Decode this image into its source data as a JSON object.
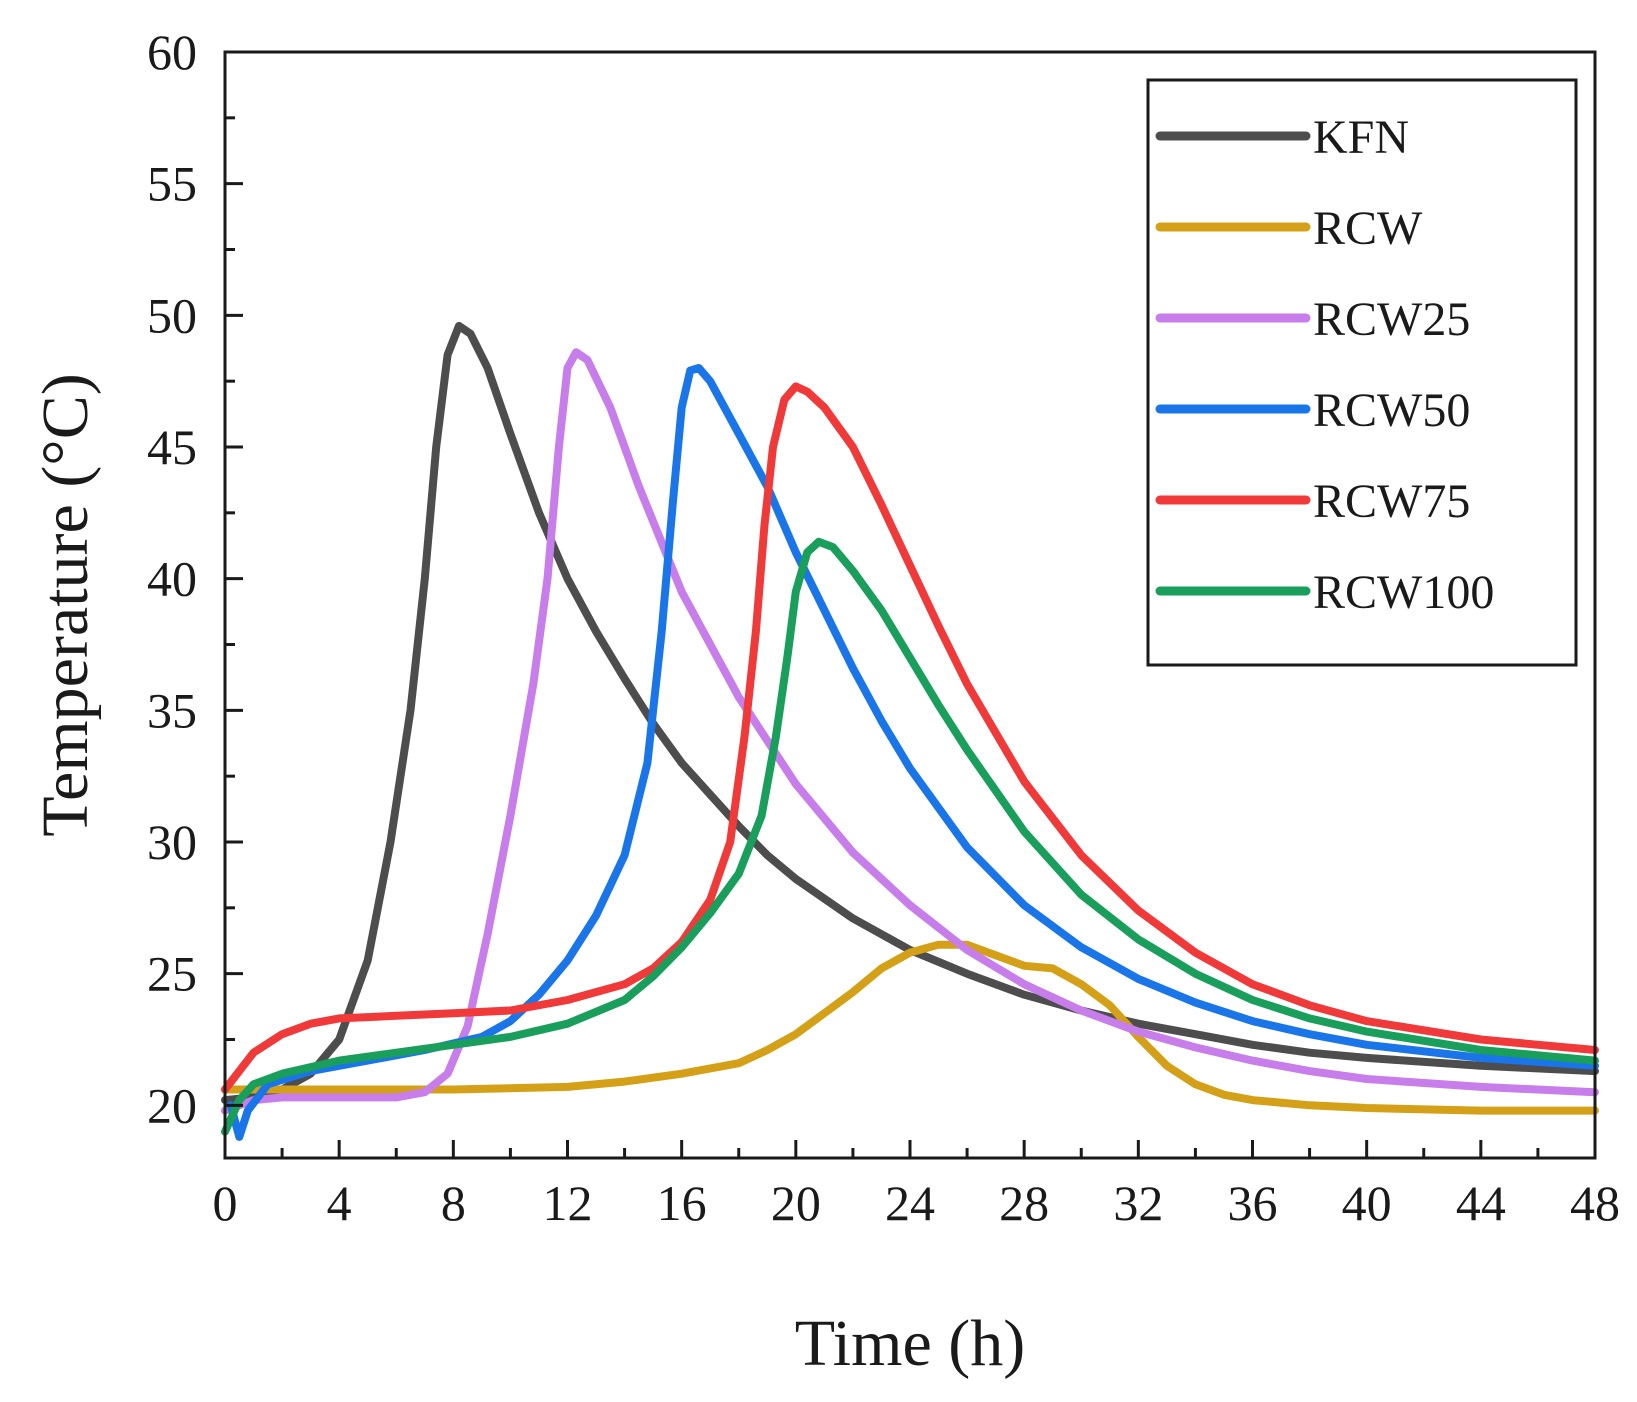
{
  "chart_data": {
    "type": "line",
    "xlabel": "Time (h)",
    "ylabel": "Temperature (°C)",
    "xlim": [
      0,
      48
    ],
    "ylim": [
      18,
      60
    ],
    "xticks": [
      0,
      4,
      8,
      12,
      16,
      20,
      24,
      28,
      32,
      36,
      40,
      44,
      48
    ],
    "yticks": [
      20,
      25,
      30,
      35,
      40,
      45,
      50,
      55,
      60
    ],
    "grid": false,
    "legend_position": "top-right",
    "series": [
      {
        "name": "KFN",
        "color": "#4d4d4d",
        "points": [
          [
            0,
            20.2
          ],
          [
            1,
            20.3
          ],
          [
            2,
            20.6
          ],
          [
            3,
            21.2
          ],
          [
            4,
            22.5
          ],
          [
            5,
            25.5
          ],
          [
            5.8,
            30
          ],
          [
            6.5,
            35
          ],
          [
            7,
            40
          ],
          [
            7.4,
            45
          ],
          [
            7.8,
            48.5
          ],
          [
            8.2,
            49.6
          ],
          [
            8.6,
            49.3
          ],
          [
            9.2,
            48
          ],
          [
            10,
            45.5
          ],
          [
            11,
            42.5
          ],
          [
            12,
            40
          ],
          [
            13,
            38
          ],
          [
            14,
            36.2
          ],
          [
            15,
            34.5
          ],
          [
            16,
            33
          ],
          [
            17,
            31.8
          ],
          [
            18,
            30.6
          ],
          [
            19,
            29.5
          ],
          [
            20,
            28.6
          ],
          [
            22,
            27.1
          ],
          [
            24,
            25.9
          ],
          [
            26,
            25
          ],
          [
            28,
            24.2
          ],
          [
            30,
            23.6
          ],
          [
            32,
            23.1
          ],
          [
            34,
            22.7
          ],
          [
            36,
            22.3
          ],
          [
            38,
            22
          ],
          [
            40,
            21.8
          ],
          [
            44,
            21.5
          ],
          [
            48,
            21.3
          ]
        ]
      },
      {
        "name": "RCW",
        "color": "#d4a017",
        "points": [
          [
            0,
            20.6
          ],
          [
            4,
            20.6
          ],
          [
            8,
            20.6
          ],
          [
            12,
            20.7
          ],
          [
            14,
            20.9
          ],
          [
            16,
            21.2
          ],
          [
            18,
            21.6
          ],
          [
            19,
            22.1
          ],
          [
            20,
            22.7
          ],
          [
            21,
            23.5
          ],
          [
            22,
            24.3
          ],
          [
            23,
            25.2
          ],
          [
            24,
            25.8
          ],
          [
            25,
            26.1
          ],
          [
            26,
            26.1
          ],
          [
            27,
            25.7
          ],
          [
            28,
            25.3
          ],
          [
            29,
            25.2
          ],
          [
            30,
            24.6
          ],
          [
            31,
            23.8
          ],
          [
            32,
            22.6
          ],
          [
            33,
            21.5
          ],
          [
            34,
            20.8
          ],
          [
            35,
            20.4
          ],
          [
            36,
            20.2
          ],
          [
            38,
            20
          ],
          [
            40,
            19.9
          ],
          [
            44,
            19.8
          ],
          [
            48,
            19.8
          ]
        ]
      },
      {
        "name": "RCW25",
        "color": "#c77dea",
        "points": [
          [
            0,
            19.8
          ],
          [
            1,
            20.2
          ],
          [
            2,
            20.3
          ],
          [
            4,
            20.3
          ],
          [
            6,
            20.3
          ],
          [
            7,
            20.5
          ],
          [
            7.8,
            21.2
          ],
          [
            8.5,
            23
          ],
          [
            9.2,
            26.5
          ],
          [
            10,
            31
          ],
          [
            10.8,
            36
          ],
          [
            11.3,
            40
          ],
          [
            11.7,
            45
          ],
          [
            12,
            48
          ],
          [
            12.3,
            48.6
          ],
          [
            12.7,
            48.3
          ],
          [
            13.5,
            46.5
          ],
          [
            14.5,
            43.5
          ],
          [
            16,
            39.5
          ],
          [
            18,
            35.5
          ],
          [
            20,
            32.2
          ],
          [
            22,
            29.6
          ],
          [
            24,
            27.6
          ],
          [
            26,
            25.9
          ],
          [
            28,
            24.6
          ],
          [
            30,
            23.6
          ],
          [
            32,
            22.8
          ],
          [
            34,
            22.2
          ],
          [
            36,
            21.7
          ],
          [
            38,
            21.3
          ],
          [
            40,
            21
          ],
          [
            44,
            20.7
          ],
          [
            48,
            20.5
          ]
        ]
      },
      {
        "name": "RCW50",
        "color": "#1a75e8",
        "points": [
          [
            0.2,
            20
          ],
          [
            0.5,
            18.8
          ],
          [
            0.8,
            19.8
          ],
          [
            1.5,
            20.8
          ],
          [
            3,
            21.3
          ],
          [
            5,
            21.7
          ],
          [
            7,
            22.1
          ],
          [
            9,
            22.6
          ],
          [
            10,
            23.2
          ],
          [
            11,
            24.2
          ],
          [
            12,
            25.5
          ],
          [
            13,
            27.2
          ],
          [
            14,
            29.5
          ],
          [
            14.8,
            33
          ],
          [
            15.3,
            38
          ],
          [
            15.7,
            43
          ],
          [
            16,
            46.5
          ],
          [
            16.3,
            47.9
          ],
          [
            16.6,
            48
          ],
          [
            17,
            47.5
          ],
          [
            18,
            45.5
          ],
          [
            19,
            43.5
          ],
          [
            20,
            41
          ],
          [
            21,
            38.8
          ],
          [
            22,
            36.6
          ],
          [
            23,
            34.6
          ],
          [
            24,
            32.8
          ],
          [
            26,
            29.8
          ],
          [
            28,
            27.6
          ],
          [
            30,
            26
          ],
          [
            32,
            24.8
          ],
          [
            34,
            23.9
          ],
          [
            36,
            23.2
          ],
          [
            38,
            22.7
          ],
          [
            40,
            22.3
          ],
          [
            44,
            21.8
          ],
          [
            48,
            21.5
          ]
        ]
      },
      {
        "name": "RCW75",
        "color": "#f03a3a",
        "points": [
          [
            0,
            20.6
          ],
          [
            0.5,
            21.3
          ],
          [
            1,
            22
          ],
          [
            2,
            22.7
          ],
          [
            3,
            23.1
          ],
          [
            4,
            23.3
          ],
          [
            6,
            23.4
          ],
          [
            8,
            23.5
          ],
          [
            10,
            23.6
          ],
          [
            12,
            24
          ],
          [
            14,
            24.6
          ],
          [
            15,
            25.2
          ],
          [
            16,
            26.2
          ],
          [
            17,
            27.8
          ],
          [
            17.7,
            30
          ],
          [
            18.2,
            34
          ],
          [
            18.6,
            38
          ],
          [
            18.9,
            42
          ],
          [
            19.2,
            45
          ],
          [
            19.6,
            46.8
          ],
          [
            20,
            47.3
          ],
          [
            20.4,
            47.1
          ],
          [
            21,
            46.5
          ],
          [
            22,
            45
          ],
          [
            23,
            42.8
          ],
          [
            24,
            40.5
          ],
          [
            25,
            38.2
          ],
          [
            26,
            36
          ],
          [
            28,
            32.3
          ],
          [
            30,
            29.5
          ],
          [
            32,
            27.4
          ],
          [
            34,
            25.8
          ],
          [
            36,
            24.6
          ],
          [
            38,
            23.8
          ],
          [
            40,
            23.2
          ],
          [
            44,
            22.5
          ],
          [
            48,
            22.1
          ]
        ]
      },
      {
        "name": "RCW100",
        "color": "#1a9e5c",
        "points": [
          [
            0,
            19
          ],
          [
            0.5,
            20.2
          ],
          [
            1,
            20.8
          ],
          [
            2,
            21.2
          ],
          [
            4,
            21.7
          ],
          [
            6,
            22
          ],
          [
            8,
            22.3
          ],
          [
            10,
            22.6
          ],
          [
            12,
            23.1
          ],
          [
            14,
            24
          ],
          [
            15,
            24.9
          ],
          [
            16,
            26
          ],
          [
            17,
            27.3
          ],
          [
            18,
            28.8
          ],
          [
            18.8,
            31
          ],
          [
            19.3,
            34
          ],
          [
            19.7,
            37
          ],
          [
            20,
            39.5
          ],
          [
            20.4,
            41
          ],
          [
            20.8,
            41.4
          ],
          [
            21.3,
            41.2
          ],
          [
            22,
            40.3
          ],
          [
            23,
            38.8
          ],
          [
            24,
            37
          ],
          [
            25,
            35.2
          ],
          [
            26,
            33.5
          ],
          [
            28,
            30.4
          ],
          [
            30,
            28
          ],
          [
            32,
            26.3
          ],
          [
            34,
            25
          ],
          [
            36,
            24
          ],
          [
            38,
            23.3
          ],
          [
            40,
            22.8
          ],
          [
            44,
            22.1
          ],
          [
            48,
            21.7
          ]
        ]
      }
    ]
  }
}
